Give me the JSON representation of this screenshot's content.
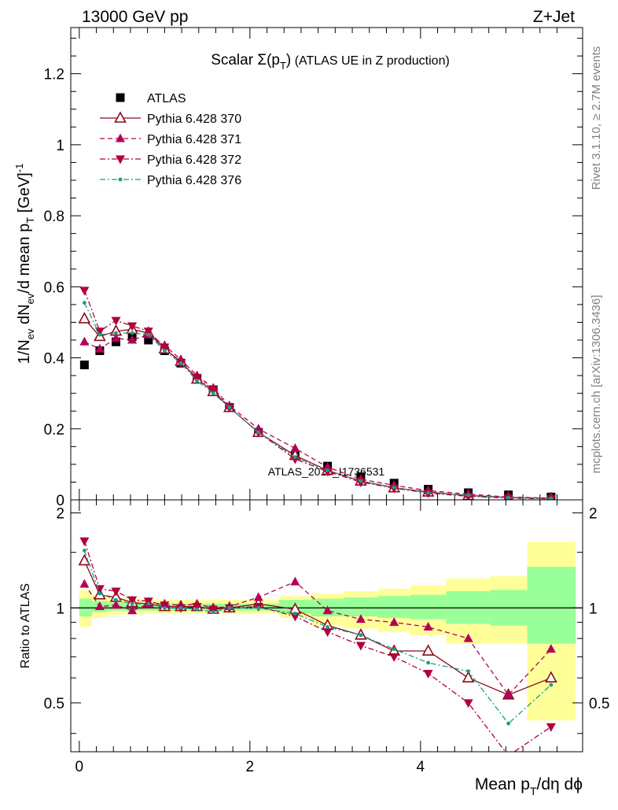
{
  "header": {
    "energy": "13000 GeV pp",
    "process": "Z+Jet"
  },
  "side_labels": {
    "rivet": "Rivet 3.1.10, ≥ 2.7M events",
    "mcplots": "mcplots.cern.ch [arXiv:1306.3436]"
  },
  "chart_data": [
    {
      "type": "scatter",
      "panel": "main",
      "title": "Scalar Σ(p_T) (ATLAS UE in Z production)",
      "xlabel": "Mean p_T/dη dφ",
      "ylabel": "1/N_ev dN_ev/d mean p_T [GeV]^-1",
      "watermark": "ATLAS_2019_I1736531",
      "xlim": [
        -0.1,
        5.9
      ],
      "ylim": [
        0,
        1.33
      ],
      "x_ticks": [
        0,
        2,
        4
      ],
      "y_ticks": [
        0,
        0.2,
        0.4,
        0.6,
        0.8,
        1,
        1.2
      ],
      "y_tick_labels": [
        "0",
        "0.2",
        "0.4",
        "0.6",
        "0.8",
        "1",
        "1.2"
      ],
      "legend_position": "top-left",
      "x": [
        0.06,
        0.24,
        0.43,
        0.62,
        0.81,
        1.0,
        1.19,
        1.38,
        1.57,
        1.76,
        2.1,
        2.53,
        2.91,
        3.3,
        3.69,
        4.09,
        4.56,
        5.03,
        5.53
      ],
      "series": [
        {
          "name": "ATLAS",
          "color": "#000000",
          "marker": "square",
          "line": "none",
          "values": [
            0.38,
            0.42,
            0.445,
            0.46,
            0.45,
            0.42,
            0.385,
            0.34,
            0.31,
            0.26,
            0.19,
            0.125,
            0.095,
            0.065,
            0.047,
            0.03,
            0.02,
            0.014,
            0.008
          ]
        },
        {
          "name": "Pythia 6.428 370",
          "color": "#8b0a1a",
          "marker": "open-triangle-up",
          "line": "solid",
          "values": [
            0.51,
            0.46,
            0.475,
            0.48,
            0.47,
            0.425,
            0.39,
            0.34,
            0.305,
            0.26,
            0.19,
            0.125,
            0.083,
            0.053,
            0.034,
            0.022,
            0.012,
            0.007,
            0.004
          ]
        },
        {
          "name": "Pythia 6.428 371",
          "color": "#b5005a",
          "marker": "triangle-up",
          "line": "dashed",
          "values": [
            0.445,
            0.425,
            0.455,
            0.45,
            0.465,
            0.435,
            0.395,
            0.35,
            0.315,
            0.265,
            0.2,
            0.145,
            0.092,
            0.058,
            0.041,
            0.026,
            0.016,
            0.008,
            0.005
          ]
        },
        {
          "name": "Pythia 6.428 372",
          "color": "#b0003a",
          "marker": "triangle-down",
          "line": "dashdot",
          "values": [
            0.59,
            0.475,
            0.505,
            0.49,
            0.475,
            0.43,
            0.385,
            0.345,
            0.31,
            0.26,
            0.19,
            0.115,
            0.08,
            0.05,
            0.033,
            0.019,
            0.01,
            0.005,
            0.003
          ]
        },
        {
          "name": "Pythia 6.428 376",
          "color": "#1a9e8a",
          "marker": "dot",
          "line": "dashdot",
          "values": [
            0.555,
            0.465,
            0.47,
            0.47,
            0.465,
            0.42,
            0.385,
            0.335,
            0.3,
            0.26,
            0.19,
            0.12,
            0.083,
            0.053,
            0.035,
            0.02,
            0.013,
            0.006,
            0.004
          ]
        }
      ]
    },
    {
      "type": "line",
      "panel": "ratio",
      "xlabel": "Mean p_T/dη dφ",
      "ylabel": "Ratio to ATLAS",
      "xlim": [
        -0.1,
        5.9
      ],
      "ylim": [
        0.35,
        2.2
      ],
      "y_scale": "log",
      "y_ticks": [
        0.5,
        1,
        2
      ],
      "y_tick_labels": [
        "0.5",
        "1",
        "2"
      ],
      "x": [
        0.06,
        0.24,
        0.43,
        0.62,
        0.81,
        1.0,
        1.19,
        1.38,
        1.57,
        1.76,
        2.1,
        2.53,
        2.91,
        3.3,
        3.69,
        4.09,
        4.56,
        5.03,
        5.53
      ],
      "bin_edges": [
        0.0,
        0.15,
        0.34,
        0.53,
        0.72,
        0.91,
        1.1,
        1.29,
        1.48,
        1.67,
        1.86,
        2.34,
        2.72,
        3.1,
        3.5,
        3.88,
        4.3,
        4.82,
        5.25,
        5.82
      ],
      "band_yellow": [
        [
          0.87,
          1.14
        ],
        [
          0.93,
          1.1
        ],
        [
          0.95,
          1.08
        ],
        [
          0.96,
          1.07
        ],
        [
          0.96,
          1.06
        ],
        [
          0.96,
          1.06
        ],
        [
          0.96,
          1.06
        ],
        [
          0.96,
          1.06
        ],
        [
          0.96,
          1.06
        ],
        [
          0.96,
          1.06
        ],
        [
          0.96,
          1.06
        ],
        [
          0.93,
          1.09
        ],
        [
          0.88,
          1.11
        ],
        [
          0.86,
          1.13
        ],
        [
          0.84,
          1.15
        ],
        [
          0.82,
          1.18
        ],
        [
          0.77,
          1.24
        ],
        [
          0.77,
          1.26
        ],
        [
          0.44,
          1.62
        ]
      ],
      "band_green": [
        [
          0.94,
          1.07
        ],
        [
          0.97,
          1.05
        ],
        [
          0.98,
          1.04
        ],
        [
          0.98,
          1.035
        ],
        [
          0.98,
          1.03
        ],
        [
          0.98,
          1.03
        ],
        [
          0.98,
          1.03
        ],
        [
          0.98,
          1.03
        ],
        [
          0.98,
          1.03
        ],
        [
          0.98,
          1.03
        ],
        [
          0.98,
          1.03
        ],
        [
          0.96,
          1.06
        ],
        [
          0.94,
          1.07
        ],
        [
          0.94,
          1.08
        ],
        [
          0.93,
          1.09
        ],
        [
          0.92,
          1.1
        ],
        [
          0.89,
          1.13
        ],
        [
          0.88,
          1.14
        ],
        [
          0.77,
          1.35
        ]
      ],
      "series": [
        {
          "name": "Pythia 6.428 370",
          "color": "#8b0a1a",
          "marker": "open-triangle-up",
          "line": "solid",
          "values": [
            1.41,
            1.1,
            1.08,
            1.04,
            1.03,
            1.01,
            1.01,
            1.01,
            0.99,
            1.0,
            1.03,
            0.99,
            0.88,
            0.82,
            0.73,
            0.73,
            0.6,
            0.53,
            0.6
          ]
        },
        {
          "name": "Pythia 6.428 371",
          "color": "#b5005a",
          "marker": "triangle-up",
          "line": "dashed",
          "values": [
            1.19,
            1.01,
            1.02,
            0.98,
            1.03,
            1.03,
            1.02,
            1.03,
            1.0,
            1.01,
            1.08,
            1.21,
            0.98,
            0.92,
            0.9,
            0.87,
            0.8,
            0.53,
            0.74
          ]
        },
        {
          "name": "Pythia 6.428 372",
          "color": "#b0003a",
          "marker": "triangle-down",
          "line": "dashdot",
          "values": [
            1.63,
            1.15,
            1.13,
            1.06,
            1.05,
            1.02,
            1.0,
            1.01,
            0.99,
            1.0,
            1.01,
            0.94,
            0.84,
            0.76,
            0.7,
            0.62,
            0.5,
            0.34,
            0.42
          ]
        },
        {
          "name": "Pythia 6.428 376",
          "color": "#1a9e8a",
          "marker": "dot",
          "line": "dashdot",
          "values": [
            1.52,
            1.11,
            1.06,
            1.03,
            1.03,
            1.0,
            1.0,
            0.99,
            0.97,
            1.0,
            1.0,
            0.96,
            0.87,
            0.82,
            0.74,
            0.67,
            0.63,
            0.43,
            0.57
          ]
        }
      ]
    }
  ]
}
